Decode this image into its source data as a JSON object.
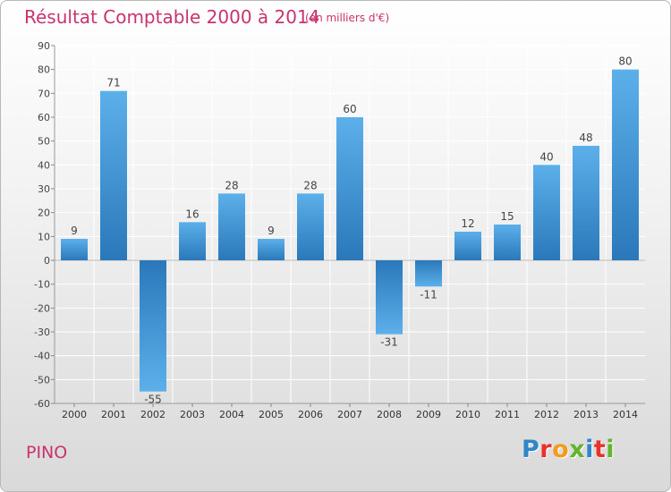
{
  "header": {
    "title": "Résultat Comptable 2000 à 2014",
    "subtitle": "(en milliers d'€)"
  },
  "footer": {
    "commune": "PINO",
    "brand_letters": [
      "P",
      "r",
      "o",
      "x",
      "i",
      "t",
      "i"
    ],
    "brand_colors": [
      "#2f86c8",
      "#e8312b",
      "#f29c1f",
      "#63b32e",
      "#2f86c8",
      "#e8312b",
      "#63b32e"
    ]
  },
  "chart_data": {
    "type": "bar",
    "title": "Résultat Comptable 2000 à 2014",
    "ylabel": "en milliers d'€",
    "xlabel": "",
    "categories": [
      "2000",
      "2001",
      "2002",
      "2003",
      "2004",
      "2005",
      "2006",
      "2007",
      "2008",
      "2009",
      "2010",
      "2011",
      "2012",
      "2013",
      "2014"
    ],
    "values": [
      9,
      71,
      -55,
      16,
      28,
      9,
      28,
      60,
      -31,
      -11,
      12,
      15,
      40,
      48,
      80
    ],
    "value_labels": [
      "9",
      "71",
      "-55",
      "16",
      "28",
      "9",
      "28",
      "60",
      "-31",
      "-11",
      "12",
      "15",
      "40",
      "48",
      "80"
    ],
    "ylim": [
      -60,
      90
    ],
    "yticks": [
      90,
      80,
      70,
      60,
      50,
      40,
      30,
      20,
      10,
      0,
      -10,
      -20,
      -30,
      -40,
      -50,
      -60
    ],
    "ytick_labels": [
      "90",
      "80",
      "70",
      "60",
      "50",
      "40",
      "30",
      "20",
      "10",
      "0",
      "-10",
      "-20",
      "-30",
      "-40",
      "-50",
      "-60"
    ],
    "grid": true,
    "bar_color": "#3d96d6"
  }
}
